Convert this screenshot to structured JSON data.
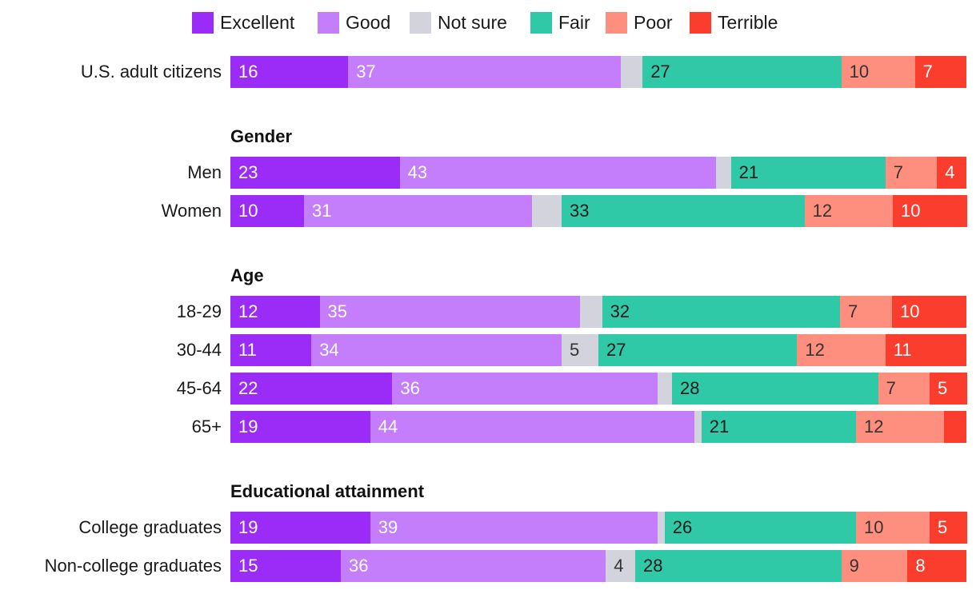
{
  "chart_data": {
    "type": "bar",
    "orientation": "horizontal-stacked-100",
    "title": "",
    "xlabel": "",
    "ylabel": "",
    "legend_position": "top-center",
    "series": [
      {
        "name": "Excellent",
        "color": "#9b2cf8"
      },
      {
        "name": "Good",
        "color": "#c47dfb"
      },
      {
        "name": "Not sure",
        "color": "#d2d3dc"
      },
      {
        "name": "Fair",
        "color": "#2fc9a7"
      },
      {
        "name": "Poor",
        "color": "#fe8e7e"
      },
      {
        "name": "Terrible",
        "color": "#fb3d2e"
      }
    ],
    "label_colors": {
      "Excellent": "#ffffff",
      "Good": "#ffffff",
      "Not sure": "#333333",
      "Fair": "#1a1a1a",
      "Poor": "#333333",
      "Terrible": "#ffffff"
    },
    "groups": [
      {
        "heading": "",
        "rows": [
          {
            "label": "U.S. adult citizens",
            "values": [
              16,
              37,
              3,
              27,
              10,
              7
            ],
            "labels": [
              "16",
              "37",
              "",
              "27",
              "10",
              "7"
            ]
          }
        ]
      },
      {
        "heading": "Gender",
        "rows": [
          {
            "label": "Men",
            "values": [
              23,
              43,
              2,
              21,
              7,
              4
            ],
            "labels": [
              "23",
              "43",
              "",
              "21",
              "7",
              "4"
            ]
          },
          {
            "label": "Women",
            "values": [
              10,
              31,
              4,
              33,
              12,
              10
            ],
            "labels": [
              "10",
              "31",
              "",
              "33",
              "12",
              "10"
            ]
          }
        ]
      },
      {
        "heading": "Age",
        "rows": [
          {
            "label": "18-29",
            "values": [
              12,
              35,
              3,
              32,
              7,
              10
            ],
            "labels": [
              "12",
              "35",
              "",
              "32",
              "7",
              "10"
            ]
          },
          {
            "label": "30-44",
            "values": [
              11,
              34,
              5,
              27,
              12,
              11
            ],
            "labels": [
              "11",
              "34",
              "5",
              "27",
              "12",
              "11"
            ]
          },
          {
            "label": "45-64",
            "values": [
              22,
              36,
              2,
              28,
              7,
              5
            ],
            "labels": [
              "22",
              "36",
              "",
              "28",
              "7",
              "5"
            ]
          },
          {
            "label": "65+",
            "values": [
              19,
              44,
              1,
              21,
              12,
              3
            ],
            "labels": [
              "19",
              "44",
              "",
              "21",
              "12",
              ""
            ]
          }
        ]
      },
      {
        "heading": "Educational attainment",
        "rows": [
          {
            "label": "College graduates",
            "values": [
              19,
              39,
              1,
              26,
              10,
              5
            ],
            "labels": [
              "19",
              "39",
              "",
              "26",
              "10",
              "5"
            ]
          },
          {
            "label": "Non-college graduates",
            "values": [
              15,
              36,
              4,
              28,
              9,
              8
            ],
            "labels": [
              "15",
              "36",
              "4",
              "28",
              "9",
              "8"
            ]
          }
        ]
      }
    ]
  }
}
